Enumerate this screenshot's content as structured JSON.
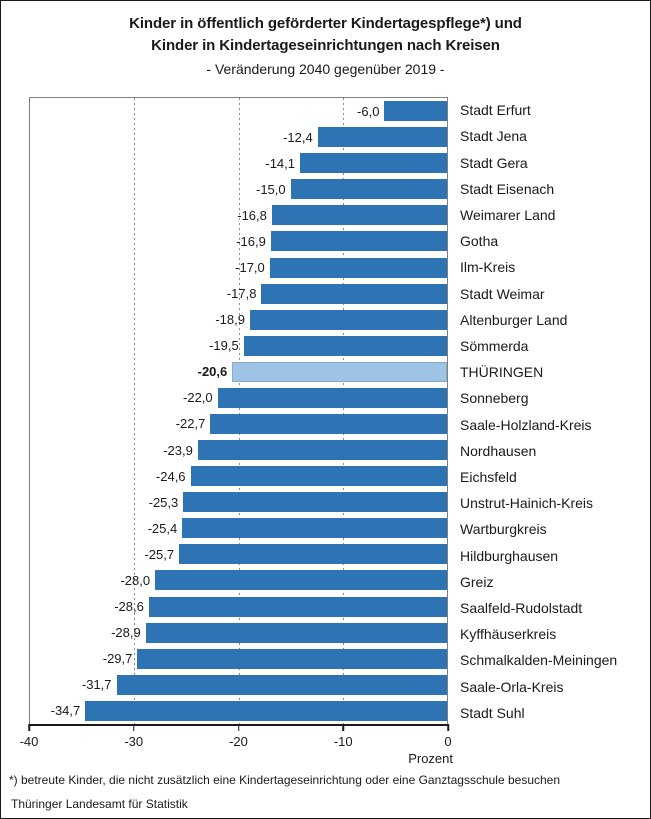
{
  "title_line1": "Kinder in öffentlich geförderter Kindertagespflege*) und",
  "title_line2": "Kinder in Kindertageseinrichtungen nach Kreisen",
  "subtitle": "- Veränderung 2040 gegenüber 2019 -",
  "chart_data": {
    "type": "bar",
    "orientation": "horizontal",
    "title": "Kinder in öffentlich geförderter Kindertagespflege*) und Kinder in Kindertageseinrichtungen nach Kreisen",
    "subtitle": "- Veränderung 2040 gegenüber 2019 -",
    "categories": [
      "Stadt Erfurt",
      "Stadt Jena",
      "Stadt Gera",
      "Stadt Eisenach",
      "Weimarer Land",
      "Gotha",
      "Ilm-Kreis",
      "Stadt Weimar",
      "Altenburger Land",
      "Sömmerda",
      "THÜRINGEN",
      "Sonneberg",
      "Saale-Holzland-Kreis",
      "Nordhausen",
      "Eichsfeld",
      "Unstrut-Hainich-Kreis",
      "Wartburgkreis",
      "Hildburghausen",
      "Greiz",
      "Saalfeld-Rudolstadt",
      "Kyffhäuserkreis",
      "Schmalkalden-Meiningen",
      "Saale-Orla-Kreis",
      "Stadt Suhl"
    ],
    "values": [
      -6.0,
      -12.4,
      -14.1,
      -15.0,
      -16.8,
      -16.9,
      -17.0,
      -17.8,
      -18.9,
      -19.5,
      -20.6,
      -22.0,
      -22.7,
      -23.9,
      -24.6,
      -25.3,
      -25.4,
      -25.7,
      -28.0,
      -28.6,
      -28.9,
      -29.7,
      -31.7,
      -34.7
    ],
    "value_labels": [
      "-6,0",
      "-12,4",
      "-14,1",
      "-15,0",
      "-16,8",
      "-16,9",
      "-17,0",
      "-17,8",
      "-18,9",
      "-19,5",
      "-20,6",
      "-22,0",
      "-22,7",
      "-23,9",
      "-24,6",
      "-25,3",
      "-25,4",
      "-25,7",
      "-28,0",
      "-28,6",
      "-28,9",
      "-29,7",
      "-31,7",
      "-34,7"
    ],
    "highlight_index": 10,
    "highlight_category": "THÜRINGEN",
    "xlabel": "Prozent",
    "xlim": [
      -40,
      0
    ],
    "xticks": [
      -40,
      -30,
      -20,
      -10,
      0
    ],
    "xtick_labels": [
      "-40",
      "-30",
      "-20",
      "-10",
      "0"
    ],
    "gridlines": "dashed vertical at -30, -20, -10",
    "legend": "none",
    "bar_color": "#2e74b5",
    "highlight_color": "#9dc3e6"
  },
  "footnote": "*) betreute Kinder, die nicht zusätzlich eine Kindertageseinrichtung oder eine Ganztagsschule besuchen",
  "source": "Thüringer Landesamt für Statistik"
}
